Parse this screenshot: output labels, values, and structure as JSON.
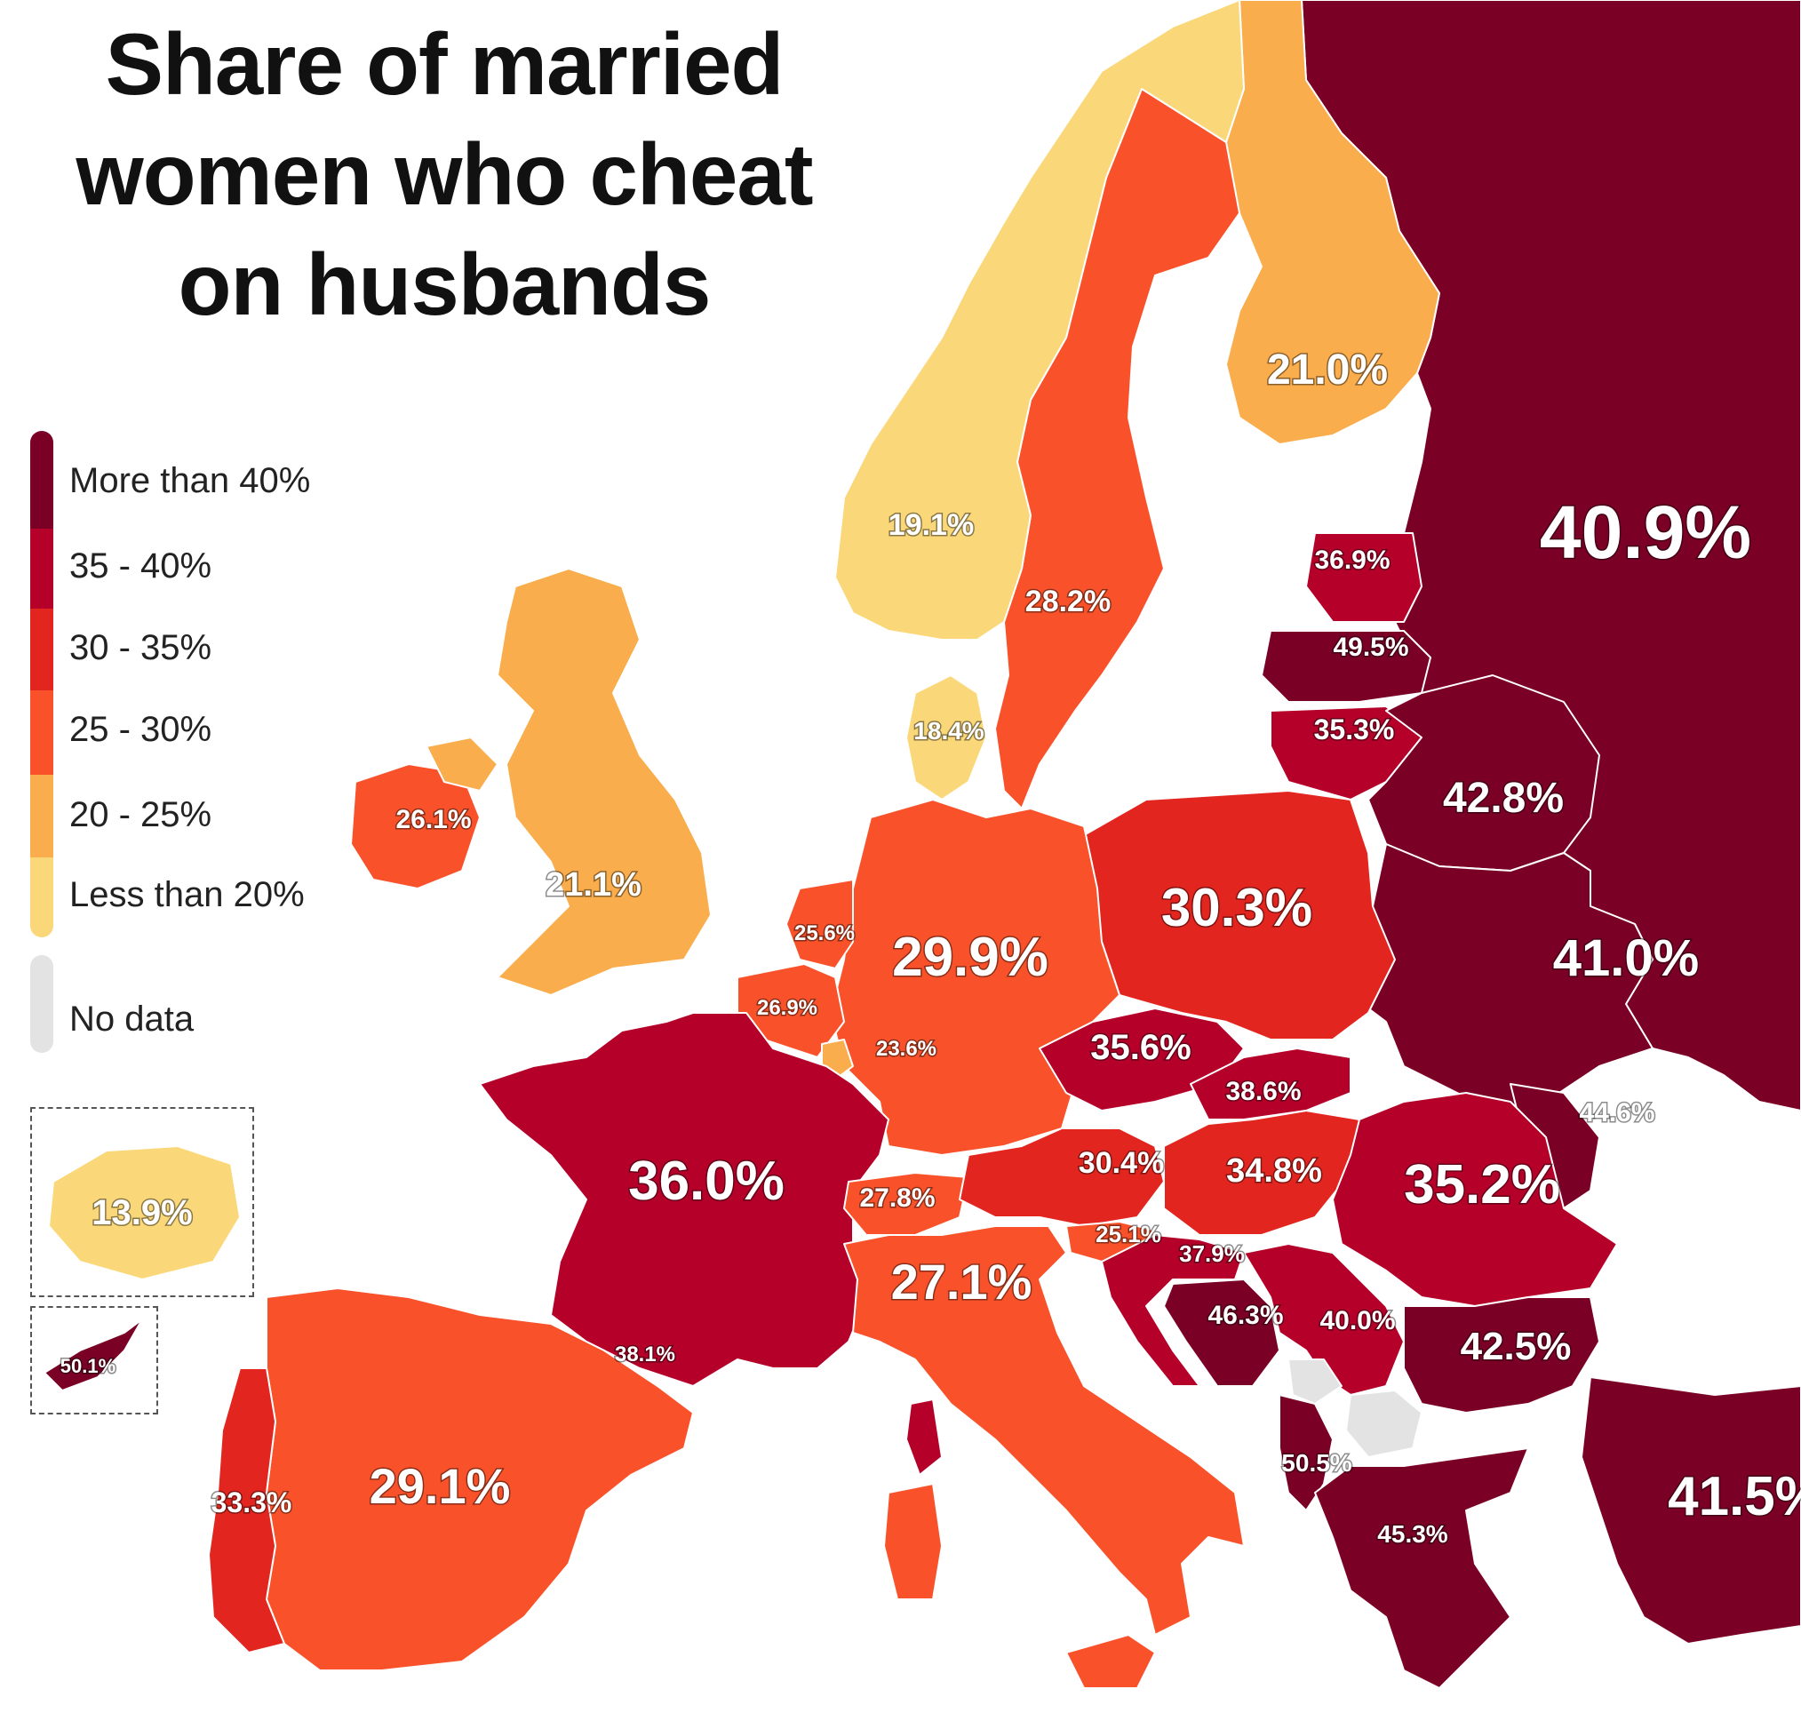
{
  "title_lines": [
    "Share of married",
    "women who cheat",
    "on husbands"
  ],
  "legend": {
    "items": [
      {
        "label": "More than 40%",
        "color": "#7a0026"
      },
      {
        "label": "35 - 40%",
        "color": "#b5002a"
      },
      {
        "label": "30 - 35%",
        "color": "#e3251f"
      },
      {
        "label": "25 - 30%",
        "color": "#f9522b"
      },
      {
        "label": "20 - 25%",
        "color": "#f9ad4c"
      },
      {
        "label": "Less than 20%",
        "color": "#fad87a"
      }
    ],
    "no_data": {
      "label": "No data",
      "color": "#e3e3e3"
    }
  },
  "countries": [
    {
      "name": "Norway",
      "value": "19.1%"
    },
    {
      "name": "Sweden",
      "value": "28.2%"
    },
    {
      "name": "Finland",
      "value": "21.0%"
    },
    {
      "name": "Russia",
      "value": "40.9%"
    },
    {
      "name": "Estonia",
      "value": "36.9%"
    },
    {
      "name": "Latvia",
      "value": "49.5%"
    },
    {
      "name": "Lithuania",
      "value": "35.3%"
    },
    {
      "name": "Belarus",
      "value": "42.8%"
    },
    {
      "name": "Ukraine",
      "value": "41.0%"
    },
    {
      "name": "Denmark",
      "value": "18.4%"
    },
    {
      "name": "Ireland",
      "value": "26.1%"
    },
    {
      "name": "United Kingdom",
      "value": "21.1%"
    },
    {
      "name": "Netherlands",
      "value": "25.6%"
    },
    {
      "name": "Belgium",
      "value": "26.9%"
    },
    {
      "name": "Luxembourg",
      "value": "23.6%"
    },
    {
      "name": "Germany",
      "value": "29.9%"
    },
    {
      "name": "Poland",
      "value": "30.3%"
    },
    {
      "name": "Czechia",
      "value": "35.6%"
    },
    {
      "name": "Slovakia",
      "value": "38.6%"
    },
    {
      "name": "Moldova",
      "value": "44.6%"
    },
    {
      "name": "Austria",
      "value": "30.4%"
    },
    {
      "name": "Hungary",
      "value": "34.8%"
    },
    {
      "name": "Romania",
      "value": "35.2%"
    },
    {
      "name": "France",
      "value": "36.0%"
    },
    {
      "name": "Switzerland",
      "value": "27.8%"
    },
    {
      "name": "Slovenia",
      "value": "25.1%"
    },
    {
      "name": "Croatia",
      "value": "37.9%"
    },
    {
      "name": "Bosnia and Herzegovina",
      "value": "46.3%"
    },
    {
      "name": "Serbia",
      "value": "40.0%"
    },
    {
      "name": "Bulgaria",
      "value": "42.5%"
    },
    {
      "name": "Italy",
      "value": "27.1%"
    },
    {
      "name": "Monaco",
      "value": "38.1%"
    },
    {
      "name": "Albania",
      "value": "50.5%"
    },
    {
      "name": "Greece",
      "value": "45.3%"
    },
    {
      "name": "Turkey",
      "value": "41.5%"
    },
    {
      "name": "Portugal",
      "value": "33.3%"
    },
    {
      "name": "Spain",
      "value": "29.1%"
    },
    {
      "name": "Iceland",
      "value": "13.9%"
    },
    {
      "name": "Cyprus",
      "value": "50.1%"
    },
    {
      "name": "Kosovo",
      "value": ""
    },
    {
      "name": "North Macedonia",
      "value": ""
    }
  ]
}
